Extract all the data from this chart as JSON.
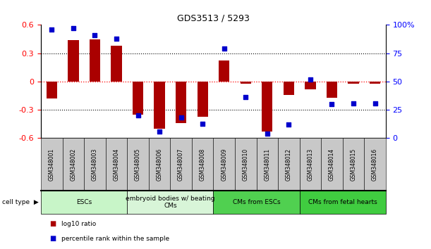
{
  "title": "GDS3513 / 5293",
  "samples": [
    "GSM348001",
    "GSM348002",
    "GSM348003",
    "GSM348004",
    "GSM348005",
    "GSM348006",
    "GSM348007",
    "GSM348008",
    "GSM348009",
    "GSM348010",
    "GSM348011",
    "GSM348012",
    "GSM348013",
    "GSM348014",
    "GSM348015",
    "GSM348016"
  ],
  "log10_ratio": [
    -0.18,
    0.44,
    0.45,
    0.38,
    -0.35,
    -0.5,
    -0.44,
    -0.37,
    0.22,
    -0.02,
    -0.53,
    -0.14,
    -0.08,
    -0.17,
    -0.02,
    -0.02
  ],
  "percentile_rank": [
    96,
    97,
    91,
    88,
    20,
    6,
    18,
    13,
    79,
    36,
    4,
    12,
    52,
    30,
    31,
    31
  ],
  "cell_groups": [
    {
      "label": "ESCs",
      "start": 0,
      "end": 3,
      "color": "#c8f5c8"
    },
    {
      "label": "embryoid bodies w/ beating\nCMs",
      "start": 4,
      "end": 7,
      "color": "#d8f5d8"
    },
    {
      "label": "CMs from ESCs",
      "start": 8,
      "end": 11,
      "color": "#50d050"
    },
    {
      "label": "CMs from fetal hearts",
      "start": 12,
      "end": 15,
      "color": "#40cc40"
    }
  ],
  "bar_color": "#aa0000",
  "dot_color": "#0000cc",
  "ylim_left": [
    -0.6,
    0.6
  ],
  "ylim_right": [
    0,
    100
  ],
  "yticks_left": [
    -0.6,
    -0.3,
    0.0,
    0.3,
    0.6
  ],
  "ytick_labels_left": [
    "-0.6",
    "-0.3",
    "0",
    "0.3",
    "0.6"
  ],
  "yticks_right": [
    0,
    25,
    50,
    75,
    100
  ],
  "ytick_labels_right": [
    "0",
    "25",
    "50",
    "75",
    "100%"
  ],
  "legend_red_label": "log10 ratio",
  "legend_blue_label": "percentile rank within the sample",
  "cell_type_label": "cell type",
  "sample_box_color": "#c8c8c8",
  "background_color": "#ffffff"
}
